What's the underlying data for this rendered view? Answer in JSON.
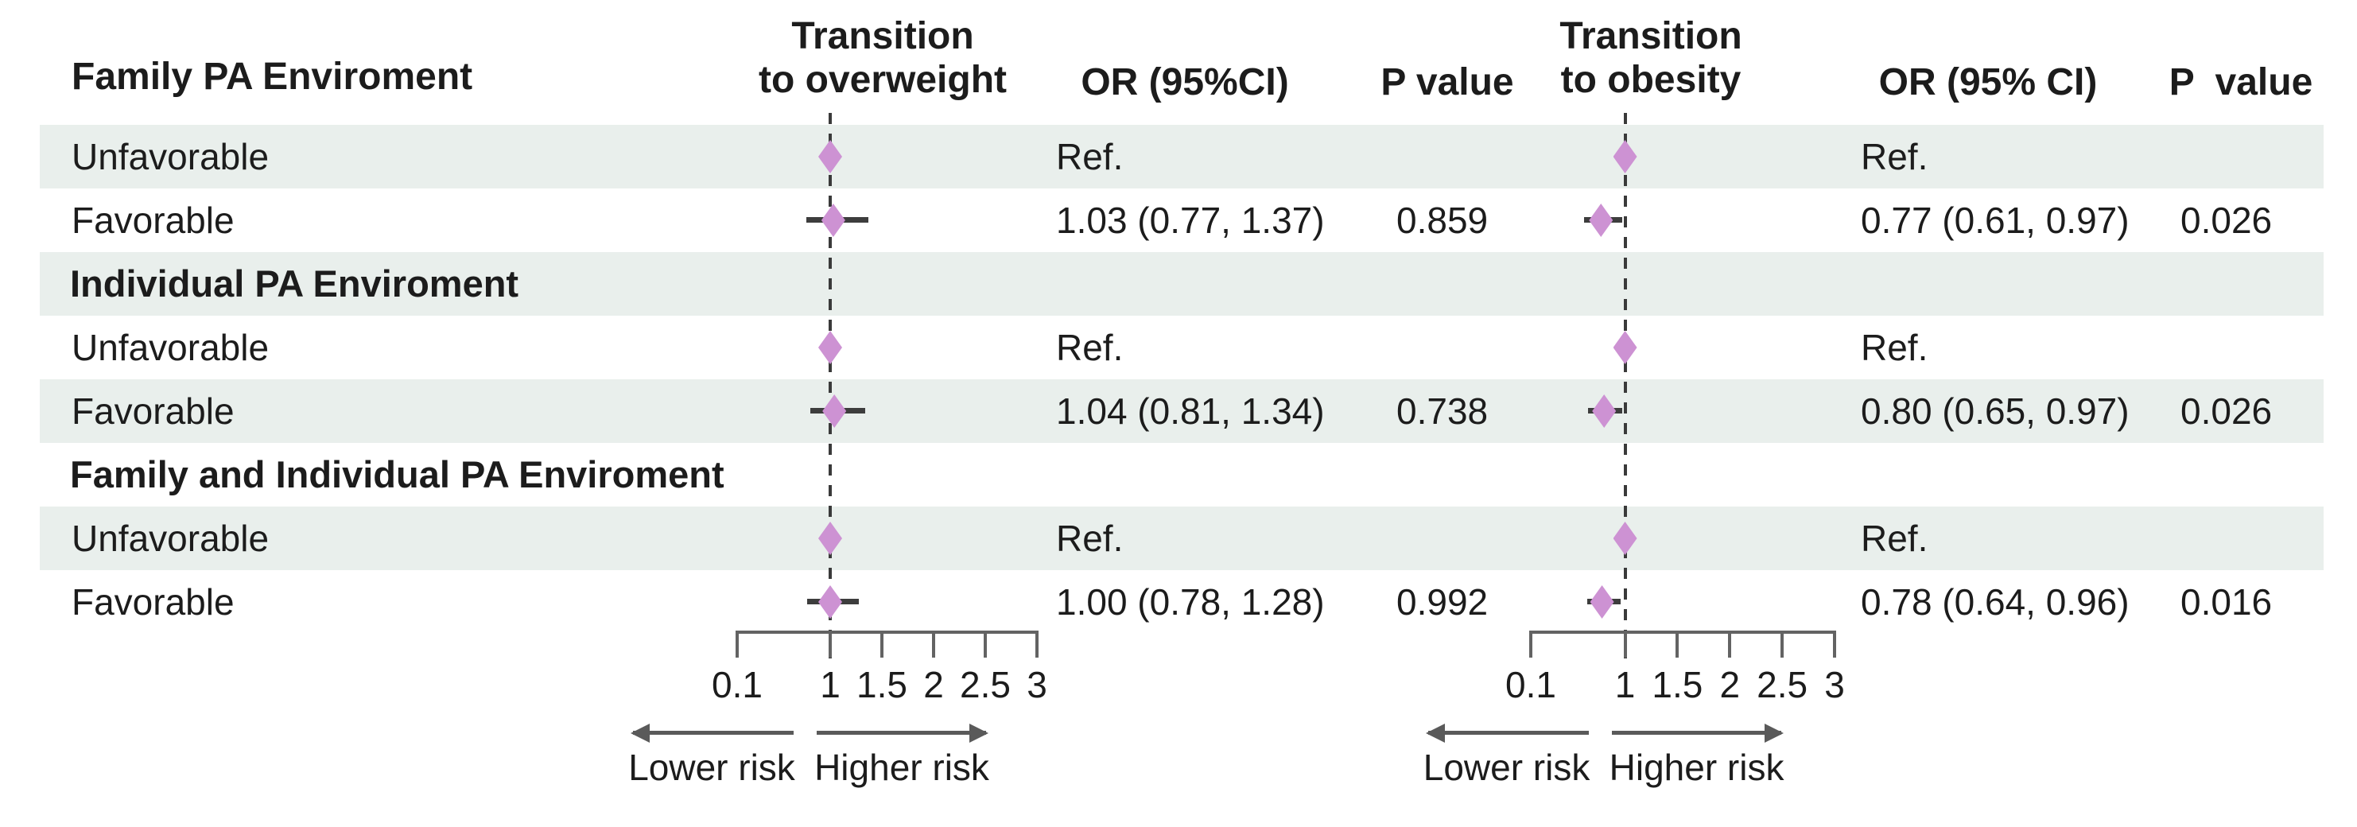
{
  "figure": {
    "stub_header": "Family PA Enviroment",
    "panels": [
      {
        "title_line1": "Transition",
        "title_line2": "to overweight",
        "or_header": "OR (95%CI)",
        "p_header": "P value"
      },
      {
        "title_line1": "Transition",
        "title_line2": "to obesity",
        "or_header": "OR (95% CI)",
        "p_header": "P  value"
      }
    ],
    "lower_risk_label": "Lower risk",
    "higher_risk_label": "Higher risk",
    "colors": {
      "row_shade": "#e9efec",
      "diamond": "#cd92d3",
      "whisker": "#3d3d3d",
      "axis": "#636363",
      "text": "#1c1c1c"
    }
  },
  "chart_data": {
    "type": "forest",
    "x_scale": "linear",
    "x_range": [
      0.1,
      3
    ],
    "x_ticks": [
      0.1,
      1,
      1.5,
      2,
      2.5,
      3
    ],
    "x_tick_labels": [
      "0.1",
      "1",
      "1.5",
      "2",
      "2.5",
      "3"
    ],
    "reference_line": 1,
    "direction_labels": {
      "left": "Lower risk",
      "right": "Higher risk"
    },
    "outcomes": [
      "Transition to overweight",
      "Transition to obesity"
    ],
    "groups": [
      {
        "name": "Family PA Enviroment",
        "rows": [
          {
            "label": "Unfavorable",
            "transition_to_overweight": {
              "or_text": "Ref.",
              "estimate": 1.0,
              "p_value": ""
            },
            "transition_to_obesity": {
              "or_text": "Ref.",
              "estimate": 1.0,
              "p_value": ""
            }
          },
          {
            "label": "Favorable",
            "transition_to_overweight": {
              "or_text": "1.03 (0.77, 1.37)",
              "estimate": 1.03,
              "ci_low": 0.77,
              "ci_high": 1.37,
              "p_value": "0.859"
            },
            "transition_to_obesity": {
              "or_text": "0.77 (0.61, 0.97)",
              "estimate": 0.77,
              "ci_low": 0.61,
              "ci_high": 0.97,
              "p_value": "0.026"
            }
          }
        ]
      },
      {
        "name": "Individual PA Enviroment",
        "rows": [
          {
            "label": "Unfavorable",
            "transition_to_overweight": {
              "or_text": "Ref.",
              "estimate": 1.0,
              "p_value": ""
            },
            "transition_to_obesity": {
              "or_text": "Ref.",
              "estimate": 1.0,
              "p_value": ""
            }
          },
          {
            "label": "Favorable",
            "transition_to_overweight": {
              "or_text": "1.04 (0.81, 1.34)",
              "estimate": 1.04,
              "ci_low": 0.81,
              "ci_high": 1.34,
              "p_value": "0.738"
            },
            "transition_to_obesity": {
              "or_text": "0.80 (0.65, 0.97)",
              "estimate": 0.8,
              "ci_low": 0.65,
              "ci_high": 0.97,
              "p_value": "0.026"
            }
          }
        ]
      },
      {
        "name": "Family and Individual PA Enviroment",
        "rows": [
          {
            "label": "Unfavorable",
            "transition_to_overweight": {
              "or_text": "Ref.",
              "estimate": 1.0,
              "p_value": ""
            },
            "transition_to_obesity": {
              "or_text": "Ref.",
              "estimate": 1.0,
              "p_value": ""
            }
          },
          {
            "label": "Favorable",
            "transition_to_overweight": {
              "or_text": "1.00 (0.78, 1.28)",
              "estimate": 1.0,
              "ci_low": 0.78,
              "ci_high": 1.28,
              "p_value": "0.992"
            },
            "transition_to_obesity": {
              "or_text": "0.78 (0.64, 0.96)",
              "estimate": 0.78,
              "ci_low": 0.64,
              "ci_high": 0.96,
              "p_value": "0.016"
            }
          }
        ]
      }
    ]
  }
}
